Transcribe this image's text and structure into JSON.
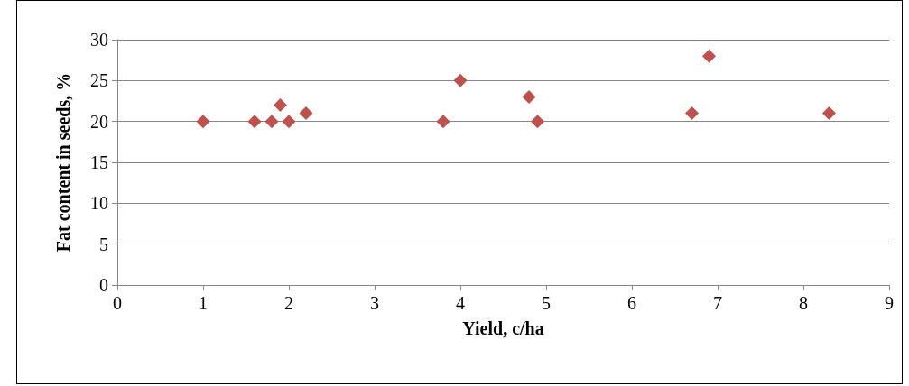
{
  "chart_data": {
    "type": "scatter",
    "xlabel": "Yield, c/ha",
    "ylabel": "Fat content in seeds, %",
    "x": [
      1,
      1.6,
      1.8,
      1.9,
      2,
      2.2,
      3.8,
      4,
      4.8,
      4.9,
      6.7,
      6.9,
      8.3
    ],
    "values": [
      20,
      20,
      20,
      22,
      20,
      21,
      20,
      25,
      23,
      20,
      21,
      28,
      21
    ],
    "color": "#c0504d",
    "marker": "diamond",
    "xlim": [
      0,
      9
    ],
    "xticks": [
      0,
      1,
      2,
      3,
      4,
      5,
      6,
      7,
      8,
      9
    ],
    "ylim": [
      0,
      30
    ],
    "yticks": [
      0,
      5,
      10,
      15,
      20,
      25,
      30
    ],
    "grid": "y"
  }
}
